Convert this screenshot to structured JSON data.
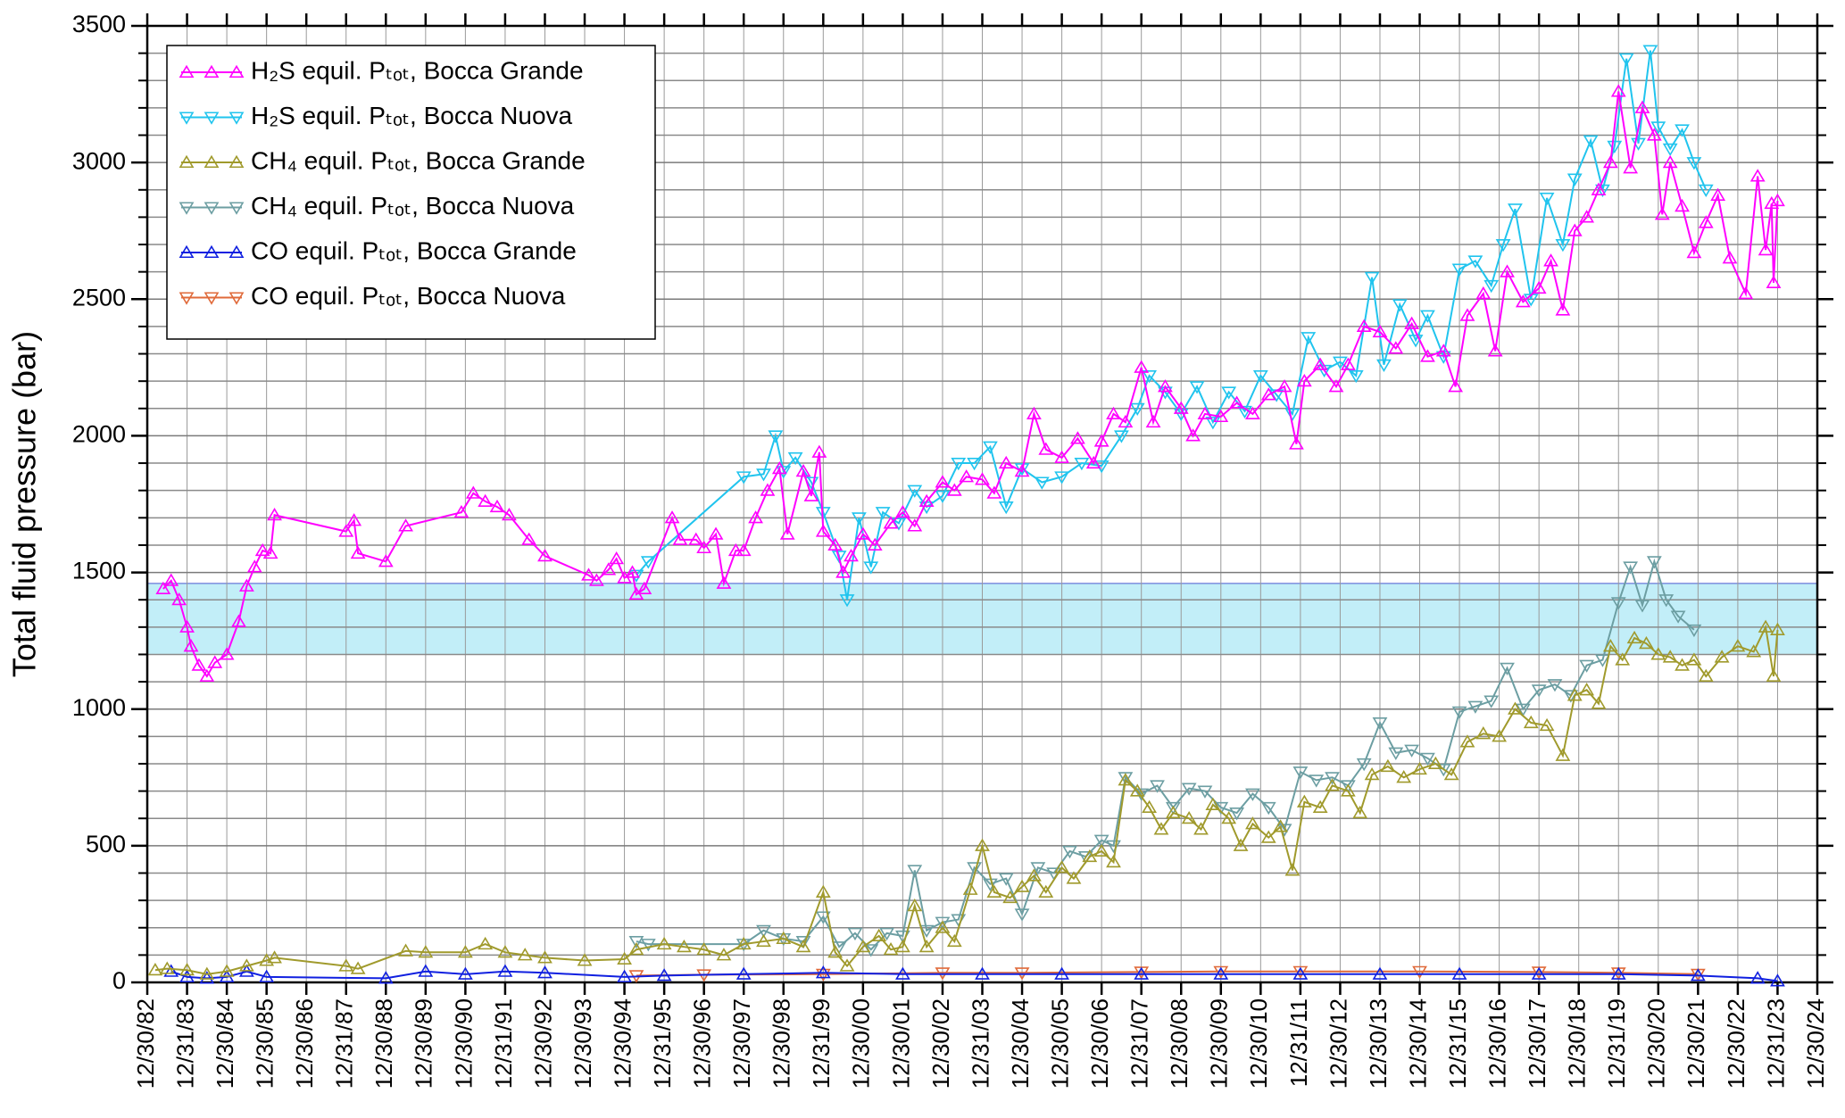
{
  "chart_data": {
    "type": "line",
    "y_label": "Total fluid pressure (bar)",
    "xlim": [
      1983,
      2025
    ],
    "xticks": [
      {
        "value": 1983,
        "label": "12/30/82"
      },
      {
        "value": 1984,
        "label": "12/31/83"
      },
      {
        "value": 1985,
        "label": "12/30/84"
      },
      {
        "value": 1986,
        "label": "12/30/85"
      },
      {
        "value": 1987,
        "label": "12/30/86"
      },
      {
        "value": 1988,
        "label": "12/31/87"
      },
      {
        "value": 1989,
        "label": "12/30/88"
      },
      {
        "value": 1990,
        "label": "12/30/89"
      },
      {
        "value": 1991,
        "label": "12/30/90"
      },
      {
        "value": 1992,
        "label": "12/31/91"
      },
      {
        "value": 1993,
        "label": "12/30/92"
      },
      {
        "value": 1994,
        "label": "12/30/93"
      },
      {
        "value": 1995,
        "label": "12/30/94"
      },
      {
        "value": 1996,
        "label": "12/31/95"
      },
      {
        "value": 1997,
        "label": "12/30/96"
      },
      {
        "value": 1998,
        "label": "12/30/97"
      },
      {
        "value": 1999,
        "label": "12/30/98"
      },
      {
        "value": 2000,
        "label": "12/31/99"
      },
      {
        "value": 2001,
        "label": "12/30/00"
      },
      {
        "value": 2002,
        "label": "12/30/01"
      },
      {
        "value": 2003,
        "label": "12/30/02"
      },
      {
        "value": 2004,
        "label": "12/31/03"
      },
      {
        "value": 2005,
        "label": "12/30/04"
      },
      {
        "value": 2006,
        "label": "12/30/05"
      },
      {
        "value": 2007,
        "label": "12/30/06"
      },
      {
        "value": 2008,
        "label": "12/31/07"
      },
      {
        "value": 2009,
        "label": "12/30/08"
      },
      {
        "value": 2010,
        "label": "12/30/09"
      },
      {
        "value": 2011,
        "label": "12/30/10"
      },
      {
        "value": 2012,
        "label": "12/31/11"
      },
      {
        "value": 2013,
        "label": "12/30/12"
      },
      {
        "value": 2014,
        "label": "12/30/13"
      },
      {
        "value": 2015,
        "label": "12/30/14"
      },
      {
        "value": 2016,
        "label": "12/31/15"
      },
      {
        "value": 2017,
        "label": "12/30/16"
      },
      {
        "value": 2018,
        "label": "12/30/17"
      },
      {
        "value": 2019,
        "label": "12/30/18"
      },
      {
        "value": 2020,
        "label": "12/31/19"
      },
      {
        "value": 2021,
        "label": "12/30/20"
      },
      {
        "value": 2022,
        "label": "12/30/21"
      },
      {
        "value": 2023,
        "label": "12/30/22"
      },
      {
        "value": 2024,
        "label": "12/31/23"
      },
      {
        "value": 2025,
        "label": "12/30/24"
      }
    ],
    "ylim": [
      0,
      3500
    ],
    "yticks": [
      0,
      500,
      1000,
      1500,
      2000,
      2500,
      3000,
      3500
    ],
    "yminorticks": [
      100,
      200,
      300,
      400,
      600,
      700,
      800,
      900,
      1100,
      1200,
      1300,
      1400,
      1600,
      1700,
      1800,
      1900,
      2100,
      2200,
      2300,
      2400,
      2600,
      2700,
      2800,
      2900,
      3100,
      3200,
      3300,
      3400
    ],
    "grid": true,
    "legend": "upper left",
    "band": {
      "range": [
        1200,
        1460
      ],
      "color": "#c2eef8",
      "edge": "#4a5ad0"
    },
    "series": [
      {
        "name": "H₂S equil. Pₜₒₜ, Bocca Grande",
        "color": "#ff00ff",
        "marker": "up",
        "x": [
          1983.4,
          1983.6,
          1983.8,
          1984.0,
          1984.1,
          1984.3,
          1984.5,
          1984.7,
          1985.0,
          1985.3,
          1985.5,
          1985.7,
          1985.9,
          1986.1,
          1986.2,
          1988.0,
          1988.2,
          1988.3,
          1989.0,
          1989.5,
          1990.9,
          1991.2,
          1991.5,
          1991.8,
          1992.1,
          1992.6,
          1993.0,
          1994.1,
          1994.3,
          1994.6,
          1994.8,
          1995.0,
          1995.2,
          1995.3,
          1995.5,
          1996.2,
          1996.4,
          1996.8,
          1997.0,
          1997.3,
          1997.5,
          1997.8,
          1998.0,
          1998.3,
          1998.6,
          1998.9,
          1999.1,
          1999.5,
          1999.7,
          1999.9,
          2000.0,
          2000.3,
          2000.5,
          2000.7,
          2001.0,
          2001.3,
          2001.7,
          2002.0,
          2002.3,
          2002.6,
          2003.0,
          2003.3,
          2003.6,
          2004.0,
          2004.3,
          2004.6,
          2005.0,
          2005.3,
          2005.6,
          2006.0,
          2006.4,
          2006.8,
          2007.0,
          2007.3,
          2007.6,
          2008.0,
          2008.3,
          2008.6,
          2009.0,
          2009.3,
          2009.6,
          2010.0,
          2010.4,
          2010.8,
          2011.2,
          2011.6,
          2011.9,
          2012.1,
          2012.5,
          2012.9,
          2013.2,
          2013.6,
          2014.0,
          2014.4,
          2014.8,
          2015.2,
          2015.6,
          2015.9,
          2016.2,
          2016.6,
          2016.9,
          2017.2,
          2017.6,
          2018.0,
          2018.3,
          2018.6,
          2018.9,
          2019.2,
          2019.5,
          2019.8,
          2020.0,
          2020.3,
          2020.6,
          2020.9,
          2021.1,
          2021.3,
          2021.6,
          2021.9,
          2022.2,
          2022.5,
          2022.8,
          2023.2,
          2023.5,
          2023.7,
          2023.85,
          2023.9,
          2024.0
        ],
        "values": [
          1440,
          1470,
          1400,
          1300,
          1230,
          1160,
          1120,
          1170,
          1200,
          1320,
          1450,
          1520,
          1580,
          1570,
          1710,
          1650,
          1690,
          1570,
          1540,
          1670,
          1720,
          1790,
          1760,
          1740,
          1710,
          1620,
          1560,
          1490,
          1470,
          1510,
          1550,
          1480,
          1500,
          1420,
          1440,
          1700,
          1620,
          1620,
          1590,
          1640,
          1460,
          1580,
          1580,
          1700,
          1800,
          1880,
          1640,
          1870,
          1780,
          1940,
          1650,
          1600,
          1500,
          1560,
          1640,
          1600,
          1680,
          1720,
          1670,
          1760,
          1830,
          1800,
          1850,
          1840,
          1790,
          1900,
          1870,
          2080,
          1950,
          1920,
          1990,
          1900,
          1980,
          2080,
          2050,
          2250,
          2050,
          2180,
          2100,
          2000,
          2080,
          2070,
          2120,
          2080,
          2150,
          2180,
          1970,
          2200,
          2260,
          2180,
          2260,
          2400,
          2380,
          2320,
          2410,
          2290,
          2310,
          2180,
          2440,
          2520,
          2310,
          2600,
          2490,
          2540,
          2640,
          2460,
          2750,
          2800,
          2900,
          3000,
          3260,
          2980,
          3200,
          3100,
          2810,
          3000,
          2840,
          2670,
          2780,
          2880,
          2650,
          2520,
          2950,
          2680,
          2850,
          2560,
          2860
        ]
      },
      {
        "name": "H₂S equil. Pₜₒₜ, Bocca Nuova",
        "color": "#20c4ee",
        "marker": "down",
        "x": [
          1995.3,
          1995.6,
          1998.0,
          1998.5,
          1998.8,
          1999.0,
          1999.3,
          1999.7,
          2000.0,
          2000.4,
          2000.6,
          2000.9,
          2001.2,
          2001.5,
          2001.9,
          2002.3,
          2002.6,
          2003.0,
          2003.4,
          2003.8,
          2004.2,
          2004.6,
          2005.0,
          2005.5,
          2006.0,
          2006.5,
          2007.0,
          2007.5,
          2007.9,
          2008.2,
          2008.6,
          2009.0,
          2009.4,
          2009.8,
          2010.2,
          2010.6,
          2011.0,
          2011.4,
          2011.8,
          2012.2,
          2012.6,
          2013.0,
          2013.4,
          2013.8,
          2014.1,
          2014.5,
          2014.9,
          2015.2,
          2015.6,
          2016.0,
          2016.4,
          2016.8,
          2017.1,
          2017.4,
          2017.8,
          2018.2,
          2018.6,
          2018.9,
          2019.3,
          2019.6,
          2019.9,
          2020.2,
          2020.5,
          2020.8,
          2021.0,
          2021.3,
          2021.6,
          2021.9,
          2022.2
        ],
        "values": [
          1490,
          1540,
          1850,
          1860,
          2000,
          1870,
          1920,
          1830,
          1720,
          1560,
          1400,
          1700,
          1520,
          1720,
          1680,
          1800,
          1740,
          1780,
          1900,
          1900,
          1960,
          1740,
          1880,
          1830,
          1850,
          1900,
          1890,
          2000,
          2100,
          2220,
          2160,
          2080,
          2180,
          2050,
          2160,
          2090,
          2220,
          2150,
          2080,
          2360,
          2240,
          2270,
          2220,
          2580,
          2260,
          2480,
          2350,
          2440,
          2290,
          2610,
          2640,
          2550,
          2700,
          2830,
          2500,
          2870,
          2700,
          2940,
          3080,
          2900,
          3060,
          3380,
          3070,
          3410,
          3130,
          3050,
          3120,
          3000,
          2900
        ]
      },
      {
        "name": "CH₄ equil. Pₜₒₜ, Bocca Grande",
        "color": "#a09a2c",
        "marker": "up",
        "x": [
          1983.2,
          1983.5,
          1984.0,
          1984.5,
          1985.0,
          1985.5,
          1986.0,
          1986.2,
          1988.0,
          1988.3,
          1989.5,
          1990.0,
          1991.0,
          1991.5,
          1992.0,
          1992.5,
          1993.0,
          1994.0,
          1995.0,
          1995.3,
          1996.0,
          1996.5,
          1997.0,
          1997.5,
          1998.0,
          1998.5,
          1999.0,
          1999.5,
          2000.0,
          2000.3,
          2000.6,
          2001.0,
          2001.4,
          2001.7,
          2002.0,
          2002.3,
          2002.6,
          2003.0,
          2003.3,
          2003.7,
          2004.0,
          2004.3,
          2004.7,
          2005.0,
          2005.3,
          2005.6,
          2006.0,
          2006.3,
          2006.7,
          2007.0,
          2007.3,
          2007.6,
          2007.9,
          2008.2,
          2008.5,
          2008.8,
          2009.2,
          2009.5,
          2009.8,
          2010.2,
          2010.5,
          2010.8,
          2011.2,
          2011.5,
          2011.8,
          2012.1,
          2012.5,
          2012.8,
          2013.2,
          2013.5,
          2013.8,
          2014.2,
          2014.6,
          2015.0,
          2015.4,
          2015.8,
          2016.2,
          2016.6,
          2017.0,
          2017.4,
          2017.8,
          2018.2,
          2018.6,
          2018.9,
          2019.2,
          2019.5,
          2019.8,
          2020.1,
          2020.4,
          2020.7,
          2021.0,
          2021.3,
          2021.6,
          2021.9,
          2022.2,
          2022.6,
          2023.0,
          2023.4,
          2023.7,
          2023.9,
          2024.0
        ],
        "values": [
          45,
          50,
          45,
          30,
          40,
          60,
          80,
          90,
          60,
          50,
          115,
          110,
          110,
          140,
          110,
          100,
          90,
          80,
          85,
          120,
          140,
          130,
          120,
          100,
          140,
          150,
          160,
          130,
          330,
          110,
          60,
          130,
          170,
          120,
          130,
          280,
          130,
          200,
          150,
          340,
          500,
          330,
          310,
          350,
          390,
          330,
          420,
          380,
          460,
          480,
          440,
          740,
          700,
          640,
          560,
          620,
          600,
          560,
          650,
          600,
          500,
          580,
          530,
          570,
          410,
          660,
          640,
          720,
          700,
          620,
          760,
          790,
          750,
          780,
          800,
          760,
          880,
          910,
          900,
          1000,
          950,
          940,
          830,
          1050,
          1070,
          1020,
          1230,
          1180,
          1260,
          1240,
          1200,
          1190,
          1160,
          1180,
          1120,
          1190,
          1230,
          1210,
          1300,
          1120,
          1290
        ]
      },
      {
        "name": "CH₄ equil. Pₜₒₜ, Bocca Nuova",
        "color": "#6c9ea2",
        "marker": "down",
        "x": [
          1995.3,
          1995.6,
          1998.0,
          1998.5,
          1999.0,
          1999.5,
          2000.0,
          2000.4,
          2000.8,
          2001.2,
          2001.6,
          2002.0,
          2002.3,
          2002.6,
          2003.0,
          2003.4,
          2003.8,
          2004.2,
          2004.6,
          2005.0,
          2005.4,
          2005.8,
          2006.2,
          2006.6,
          2007.0,
          2007.3,
          2007.6,
          2008.0,
          2008.4,
          2008.8,
          2009.2,
          2009.6,
          2010.0,
          2010.4,
          2010.8,
          2011.2,
          2011.6,
          2012.0,
          2012.4,
          2012.8,
          2013.2,
          2013.6,
          2014.0,
          2014.4,
          2014.8,
          2015.2,
          2015.6,
          2016.0,
          2016.4,
          2016.8,
          2017.2,
          2017.6,
          2018.0,
          2018.4,
          2018.8,
          2019.2,
          2019.6,
          2020.0,
          2020.3,
          2020.6,
          2020.9,
          2021.2,
          2021.5,
          2021.9
        ],
        "values": [
          150,
          140,
          140,
          190,
          160,
          150,
          240,
          130,
          180,
          120,
          180,
          170,
          410,
          190,
          220,
          230,
          420,
          360,
          380,
          250,
          420,
          400,
          480,
          460,
          520,
          500,
          750,
          690,
          720,
          640,
          710,
          700,
          640,
          620,
          690,
          640,
          560,
          770,
          740,
          750,
          720,
          800,
          950,
          840,
          850,
          820,
          780,
          990,
          1010,
          1030,
          1150,
          1000,
          1070,
          1090,
          1050,
          1160,
          1180,
          1390,
          1520,
          1380,
          1540,
          1400,
          1340,
          1290
        ]
      },
      {
        "name": "CO equil. Pₜₒₜ, Bocca Grande",
        "color": "#1020e0",
        "marker": "up",
        "x": [
          1983.6,
          1984.0,
          1984.5,
          1985.0,
          1985.5,
          1986.0,
          1989.0,
          1990.0,
          1991.0,
          1992.0,
          1993.0,
          1995.0,
          1996.0,
          1998.0,
          2000.0,
          2002.0,
          2004.0,
          2006.0,
          2008.0,
          2010.0,
          2012.0,
          2014.0,
          2016.0,
          2018.0,
          2020.0,
          2022.0,
          2023.5,
          2024.0
        ],
        "values": [
          40,
          20,
          15,
          20,
          40,
          20,
          15,
          40,
          30,
          40,
          35,
          20,
          25,
          30,
          35,
          30,
          30,
          30,
          30,
          30,
          30,
          30,
          30,
          30,
          30,
          25,
          15,
          5
        ]
      },
      {
        "name": "CO equil. Pₜₒₜ, Bocca Nuova",
        "color": "#e06a3a",
        "marker": "down",
        "x": [
          1995.3,
          1997.0,
          2000.0,
          2003.0,
          2005.0,
          2008.0,
          2010.0,
          2012.0,
          2015.0,
          2018.0,
          2020.0,
          2022.0
        ],
        "values": [
          25,
          28,
          30,
          35,
          35,
          38,
          40,
          40,
          40,
          38,
          35,
          30
        ]
      }
    ]
  }
}
